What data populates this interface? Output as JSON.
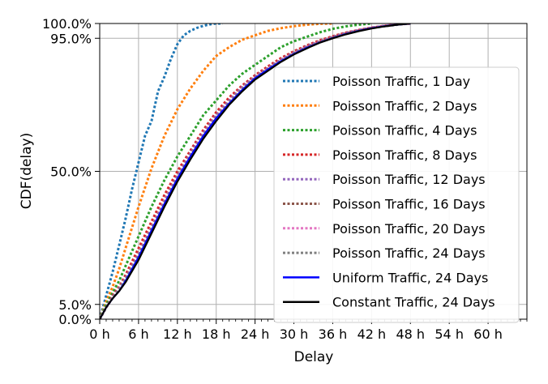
{
  "chart_data": {
    "type": "line",
    "xlabel": "Delay",
    "ylabel": "CDF(delay)",
    "xlim": [
      0,
      66
    ],
    "ylim": [
      0,
      100
    ],
    "x_ticks": [
      0,
      6,
      12,
      18,
      24,
      30,
      36,
      42,
      48,
      54,
      60
    ],
    "x_tick_labels": [
      "0 h",
      "6 h",
      "12 h",
      "18 h",
      "24 h",
      "30 h",
      "36 h",
      "42 h",
      "48 h",
      "54 h",
      "60 h"
    ],
    "y_ticks": [
      0,
      5,
      50,
      95,
      100
    ],
    "y_tick_labels": [
      "0.0%",
      "5.0%",
      "50.0%",
      "95.0%",
      "100.0%"
    ],
    "x_minor_step": 1,
    "grid": true,
    "legend_position": "right",
    "series": [
      {
        "name": "Poisson Traffic, 1 Day",
        "color": "#1f77b4",
        "style": "dotted",
        "x": [
          0,
          1,
          2,
          3,
          4,
          5,
          6,
          7,
          8,
          9,
          10,
          11,
          12,
          13,
          14,
          15,
          16,
          17,
          18,
          19
        ],
        "y": [
          0,
          8,
          16,
          25,
          34,
          44,
          53,
          62,
          67,
          77,
          82,
          88,
          93,
          96,
          97.5,
          98.5,
          99.2,
          99.7,
          100,
          100
        ]
      },
      {
        "name": "Poisson Traffic, 2 Days",
        "color": "#ff7f0e",
        "style": "dotted",
        "x": [
          0,
          1,
          2,
          3,
          4,
          5,
          6,
          8,
          10,
          12,
          14,
          16,
          18,
          20,
          22,
          24,
          26,
          28,
          30,
          32,
          34,
          36
        ],
        "y": [
          0,
          6,
          11,
          17,
          24,
          31,
          38,
          51,
          62,
          71,
          78,
          84,
          89,
          92,
          94.5,
          96,
          97.5,
          98.4,
          99.1,
          99.6,
          99.9,
          100
        ]
      },
      {
        "name": "Poisson Traffic, 4 Days",
        "color": "#2ca02c",
        "style": "dotted",
        "x": [
          0,
          1,
          2,
          3,
          4,
          6,
          8,
          10,
          12,
          14,
          16,
          18,
          20,
          22,
          24,
          26,
          28,
          30,
          32,
          34,
          36,
          38,
          40,
          42
        ],
        "y": [
          0,
          5,
          9,
          13,
          18,
          28,
          38,
          47,
          55,
          62,
          69,
          74,
          79,
          83,
          86,
          89,
          92,
          94,
          95.5,
          97,
          98.2,
          99,
          99.6,
          100
        ]
      },
      {
        "name": "Poisson Traffic, 8 Days",
        "color": "#d62728",
        "style": "dotted",
        "x": [
          0,
          1,
          2,
          3,
          4,
          6,
          8,
          10,
          12,
          14,
          16,
          18,
          20,
          22,
          24,
          26,
          28,
          30,
          32,
          34,
          36,
          38,
          40,
          42,
          44,
          46,
          48
        ],
        "y": [
          0,
          4,
          8,
          11,
          15,
          24,
          33,
          42,
          50,
          57,
          64,
          70,
          75,
          79,
          82.5,
          85.5,
          88.3,
          90.6,
          92.6,
          94.3,
          95.7,
          96.9,
          97.8,
          98.6,
          99.2,
          99.7,
          100
        ]
      },
      {
        "name": "Poisson Traffic, 12 Days",
        "color": "#9467bd",
        "style": "dotted",
        "x": [
          0,
          1,
          2,
          3,
          4,
          6,
          8,
          10,
          12,
          14,
          16,
          18,
          20,
          22,
          24,
          26,
          28,
          30,
          32,
          34,
          36,
          38,
          40,
          42,
          44,
          46,
          48
        ],
        "y": [
          0,
          4,
          7.5,
          10.5,
          14,
          22,
          31,
          40,
          48.5,
          56,
          63,
          69,
          74,
          78.5,
          82,
          85,
          87.8,
          90.2,
          92.3,
          94,
          95.5,
          96.8,
          97.8,
          98.6,
          99.2,
          99.7,
          100
        ]
      },
      {
        "name": "Poisson Traffic, 16 Days",
        "color": "#8c564b",
        "style": "dotted",
        "x": [
          0,
          1,
          2,
          3,
          4,
          6,
          8,
          10,
          12,
          14,
          16,
          18,
          20,
          22,
          24,
          26,
          28,
          30,
          32,
          34,
          36,
          38,
          40,
          42,
          44,
          46,
          48
        ],
        "y": [
          0,
          4,
          7.3,
          10.3,
          13.8,
          21.5,
          30.5,
          39.5,
          48,
          55.5,
          62.5,
          68.5,
          73.5,
          78,
          81.8,
          84.8,
          87.6,
          90,
          92.1,
          93.9,
          95.4,
          96.7,
          97.7,
          98.5,
          99.2,
          99.7,
          100
        ]
      },
      {
        "name": "Poisson Traffic, 20 Days",
        "color": "#e377c2",
        "style": "dotted",
        "x": [
          0,
          1,
          2,
          3,
          4,
          6,
          8,
          10,
          12,
          14,
          16,
          18,
          20,
          22,
          24,
          26,
          28,
          30,
          32,
          34,
          36,
          38,
          40,
          42,
          44,
          46,
          48
        ],
        "y": [
          0,
          4,
          7.2,
          10.2,
          13.6,
          21.3,
          30.2,
          39.2,
          47.8,
          55.3,
          62.3,
          68.3,
          73.4,
          77.9,
          81.7,
          84.7,
          87.5,
          89.9,
          92,
          93.8,
          95.3,
          96.6,
          97.7,
          98.5,
          99.2,
          99.7,
          100
        ]
      },
      {
        "name": "Poisson Traffic, 24 Days",
        "color": "#7f7f7f",
        "style": "dotted",
        "x": [
          0,
          1,
          2,
          3,
          4,
          6,
          8,
          10,
          12,
          14,
          16,
          18,
          20,
          22,
          24,
          26,
          28,
          30,
          32,
          34,
          36,
          38,
          40,
          42,
          44,
          46,
          48
        ],
        "y": [
          0,
          4,
          7.2,
          10.1,
          13.5,
          21.2,
          30.1,
          39,
          47.6,
          55.1,
          62.1,
          68.1,
          73.3,
          77.8,
          81.6,
          84.6,
          87.4,
          89.8,
          91.9,
          93.7,
          95.2,
          96.5,
          97.6,
          98.4,
          99.1,
          99.6,
          100
        ]
      },
      {
        "name": "Uniform Traffic, 24 Days",
        "color": "#0000ff",
        "style": "solid",
        "x": [
          0,
          1,
          2,
          3,
          4,
          6,
          8,
          10,
          12,
          14,
          16,
          18,
          20,
          22,
          24,
          26,
          28,
          30,
          32,
          34,
          36,
          38,
          40,
          42,
          44,
          46,
          48
        ],
        "y": [
          0,
          4,
          7,
          9.5,
          13,
          21,
          30,
          39,
          47.5,
          55,
          62,
          68,
          73,
          77.5,
          81.5,
          84.5,
          87.3,
          89.7,
          91.8,
          93.6,
          95.1,
          96.4,
          97.5,
          98.4,
          99.1,
          99.6,
          100
        ]
      },
      {
        "name": "Constant Traffic, 24 Days",
        "color": "#000000",
        "style": "solid",
        "x": [
          0,
          1,
          2,
          3,
          4,
          6,
          8,
          10,
          12,
          14,
          16,
          18,
          20,
          22,
          24,
          26,
          28,
          30,
          32,
          34,
          36,
          38,
          40,
          42,
          44,
          46,
          48
        ],
        "y": [
          0,
          4,
          7,
          9.5,
          12.5,
          20,
          29,
          38,
          46.5,
          54,
          61,
          67,
          72.5,
          77,
          81,
          84,
          87,
          89.5,
          91.6,
          93.5,
          95,
          96.3,
          97.4,
          98.3,
          99,
          99.6,
          100
        ]
      }
    ]
  }
}
